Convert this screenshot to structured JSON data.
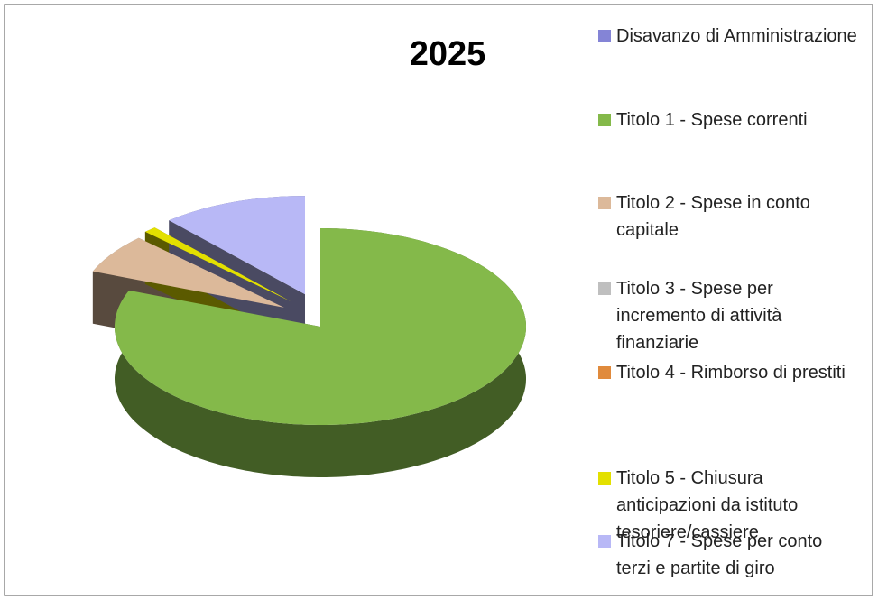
{
  "chart_data": {
    "type": "pie",
    "title": "2025",
    "categories": [
      "Disavanzo di Amministrazione",
      "Titolo 1 - Spese correnti",
      "Titolo 2 - Spese in conto capitale",
      "Titolo 3 - Spese per incremento di attività finanziarie",
      "Titolo 4 - Rimborso di prestiti",
      "Titolo 5 - Chiusura anticipazioni da istituto tesoriere/cassiere",
      "Titolo 7 - Spese per conto terzi e partite di giro"
    ],
    "values": [
      0,
      81,
      6.5,
      0,
      0,
      1,
      11.5
    ],
    "colors": [
      "#8484d6",
      "#84b94a",
      "#dcb99a",
      "#bfbfbf",
      "#e08a3c",
      "#e3e000",
      "#b8b8f6"
    ],
    "legend": "right"
  }
}
